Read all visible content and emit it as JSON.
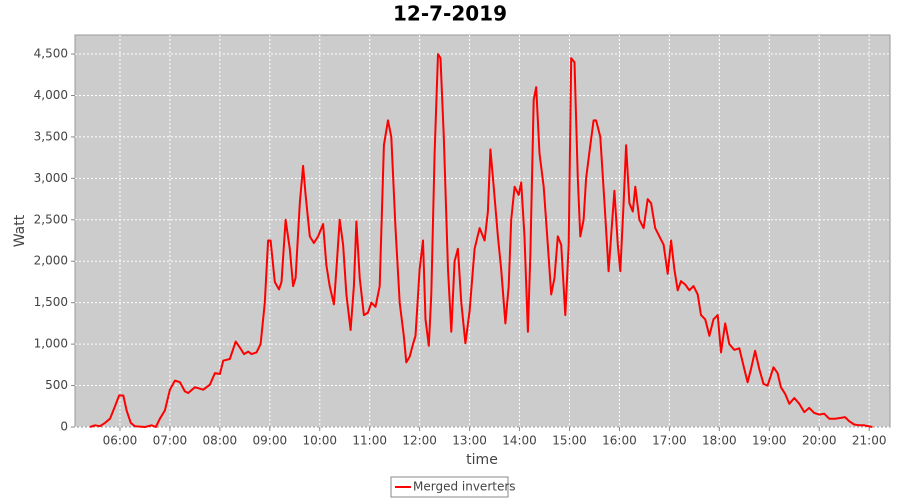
{
  "chart_data": {
    "type": "line",
    "title": "12-7-2019",
    "xlabel": "time",
    "ylabel": "Watt",
    "x": [
      324,
      330,
      336,
      342,
      348,
      354,
      359,
      364,
      368,
      373,
      378,
      390,
      398,
      403,
      408,
      414,
      420,
      426,
      432,
      438,
      442,
      450,
      460,
      468,
      474,
      480,
      484,
      492,
      499,
      504,
      509,
      514,
      518,
      524,
      529,
      534,
      538,
      541,
      546,
      551,
      554,
      559,
      564,
      568,
      571,
      576,
      580,
      583,
      588,
      593,
      598,
      604,
      608,
      612,
      617,
      620,
      624,
      628,
      632,
      637,
      641,
      644,
      648,
      653,
      658,
      662,
      667,
      672,
      677,
      682,
      686,
      691,
      696,
      701,
      704,
      708,
      712,
      715,
      720,
      724,
      727,
      731,
      734,
      738,
      742,
      745,
      749,
      754,
      758,
      762,
      766,
      770,
      775,
      780,
      786,
      792,
      798,
      802,
      805,
      809,
      814,
      818,
      823,
      827,
      830,
      834,
      839,
      842,
      846,
      850,
      853,
      857,
      860,
      864,
      869,
      874,
      878,
      882,
      886,
      890,
      895,
      899,
      902,
      906,
      910,
      913,
      917,
      920,
      925,
      929,
      932,
      937,
      942,
      947,
      950,
      954,
      958,
      961,
      965,
      968,
      972,
      976,
      979,
      984,
      989,
      994,
      998,
      1003,
      1008,
      1013,
      1018,
      1022,
      1026,
      1030,
      1034,
      1039,
      1044,
      1049,
      1054,
      1058,
      1063,
      1068,
      1073,
      1078,
      1082,
      1087,
      1092,
      1098,
      1104,
      1110,
      1114,
      1118,
      1123,
      1128,
      1133,
      1138,
      1145,
      1150,
      1154,
      1159,
      1164,
      1170,
      1176,
      1182,
      1188,
      1194,
      1200,
      1206,
      1212,
      1219,
      1226,
      1231,
      1236,
      1242,
      1248,
      1254,
      1259,
      1264
    ],
    "series": [
      {
        "name": "Merged inverters",
        "color": "#ff0000",
        "values": [
          0,
          20,
          10,
          50,
          100,
          250,
          380,
          380,
          200,
          50,
          10,
          0,
          20,
          0,
          100,
          200,
          450,
          560,
          540,
          430,
          410,
          480,
          450,
          510,
          650,
          640,
          800,
          820,
          1030,
          960,
          880,
          910,
          880,
          900,
          1000,
          1500,
          2250,
          2250,
          1750,
          1660,
          1750,
          2500,
          2150,
          1700,
          1800,
          2700,
          3150,
          2800,
          2300,
          2220,
          2300,
          2450,
          1950,
          1700,
          1480,
          1900,
          2500,
          2200,
          1600,
          1170,
          1700,
          2480,
          1800,
          1350,
          1380,
          1500,
          1450,
          1700,
          3400,
          3700,
          3500,
          2400,
          1500,
          1100,
          780,
          850,
          1000,
          1100,
          1900,
          2250,
          1300,
          980,
          1600,
          3300,
          4500,
          4450,
          3500,
          1900,
          1150,
          2000,
          2150,
          1500,
          1010,
          1400,
          2150,
          2400,
          2250,
          2600,
          3350,
          2900,
          2300,
          1900,
          1250,
          1700,
          2500,
          2900,
          2800,
          2950,
          2300,
          1150,
          2100,
          3950,
          4100,
          3300,
          2900,
          2200,
          1600,
          1800,
          2300,
          2200,
          1350,
          2200,
          4450,
          4400,
          3000,
          2300,
          2500,
          3000,
          3400,
          3700,
          3700,
          3500,
          2700,
          1880,
          2300,
          2850,
          2200,
          1880,
          2700,
          3400,
          2700,
          2600,
          2900,
          2500,
          2400,
          2750,
          2700,
          2400,
          2300,
          2200,
          1850,
          2250,
          1900,
          1650,
          1760,
          1720,
          1650,
          1700,
          1600,
          1350,
          1300,
          1100,
          1300,
          1350,
          900,
          1250,
          1000,
          930,
          950,
          700,
          540,
          700,
          920,
          700,
          520,
          500,
          720,
          650,
          480,
          400,
          280,
          350,
          280,
          180,
          230,
          170,
          150,
          160,
          100,
          100,
          110,
          120,
          70,
          30,
          20,
          20,
          10,
          0
        ]
      }
    ],
    "xlim": [
      306,
      1285
    ],
    "xticks": [
      {
        "value": 360,
        "label": "06:00"
      },
      {
        "value": 420,
        "label": "07:00"
      },
      {
        "value": 480,
        "label": "08:00"
      },
      {
        "value": 540,
        "label": "09:00"
      },
      {
        "value": 600,
        "label": "10:00"
      },
      {
        "value": 660,
        "label": "11:00"
      },
      {
        "value": 720,
        "label": "12:00"
      },
      {
        "value": 780,
        "label": "13:00"
      },
      {
        "value": 840,
        "label": "14:00"
      },
      {
        "value": 900,
        "label": "15:00"
      },
      {
        "value": 960,
        "label": "16:00"
      },
      {
        "value": 1020,
        "label": "17:00"
      },
      {
        "value": 1080,
        "label": "18:00"
      },
      {
        "value": 1140,
        "label": "19:00"
      },
      {
        "value": 1200,
        "label": "20:00"
      },
      {
        "value": 1260,
        "label": "21:00"
      }
    ],
    "ylim": [
      0,
      4730
    ],
    "yticks": [
      0,
      500,
      {
        "value": 1000,
        "label": "1,000"
      },
      {
        "value": 1500,
        "label": "1,500"
      },
      {
        "value": 2000,
        "label": "2,000"
      },
      {
        "value": 2500,
        "label": "2,500"
      },
      {
        "value": 3000,
        "label": "3,000"
      },
      {
        "value": 3500,
        "label": "3,500"
      },
      {
        "value": 4000,
        "label": "4,000"
      },
      {
        "value": 4500,
        "label": "4,500"
      }
    ],
    "grid": true,
    "legend": "bottom"
  }
}
